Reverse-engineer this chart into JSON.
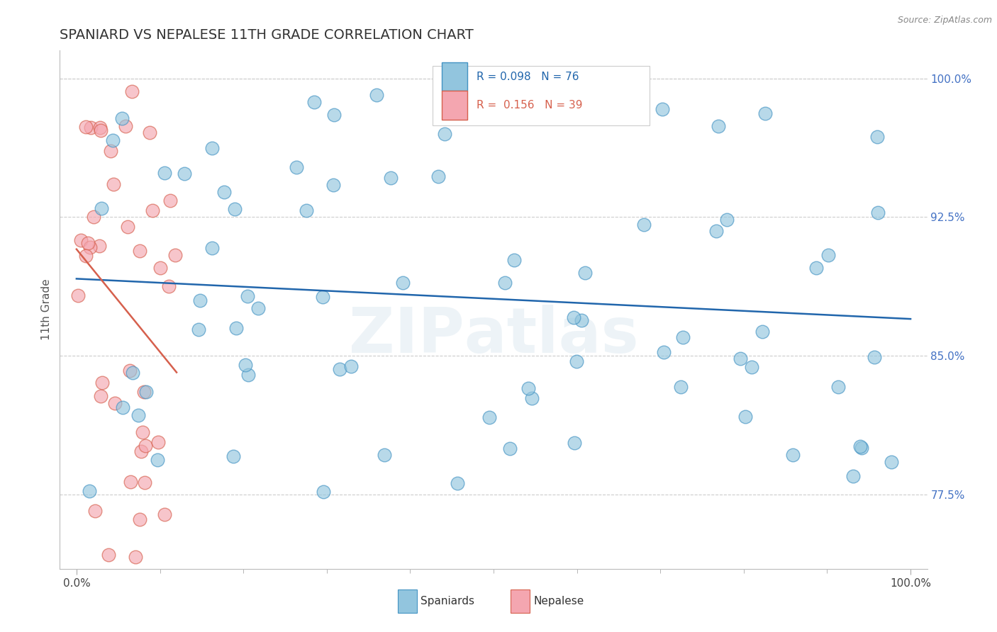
{
  "title": "SPANIARD VS NEPALESE 11TH GRADE CORRELATION CHART",
  "title_color": "#333333",
  "ylabel": "11th Grade",
  "source_text": "Source: ZipAtlas.com",
  "xlim": [
    0,
    1
  ],
  "ylim": [
    0.735,
    1.015
  ],
  "x_tick_labels": [
    "0.0%",
    "100.0%"
  ],
  "y_tick_labels": [
    "77.5%",
    "85.0%",
    "92.5%",
    "100.0%"
  ],
  "y_tick_values": [
    0.775,
    0.85,
    0.925,
    1.0
  ],
  "R_spaniard": 0.098,
  "N_spaniard": 76,
  "R_nepalese": 0.156,
  "N_nepalese": 39,
  "spaniard_color": "#92c5de",
  "spaniard_edge_color": "#4393c3",
  "nepalese_color": "#f4a6b0",
  "nepalese_edge_color": "#d6604d",
  "spaniard_line_color": "#2166ac",
  "nepalese_line_color": "#d6604d",
  "grid_color": "#cccccc",
  "background_color": "#ffffff",
  "legend_box_color": "#f0f0f0",
  "legend_box_edge": "#cccccc"
}
